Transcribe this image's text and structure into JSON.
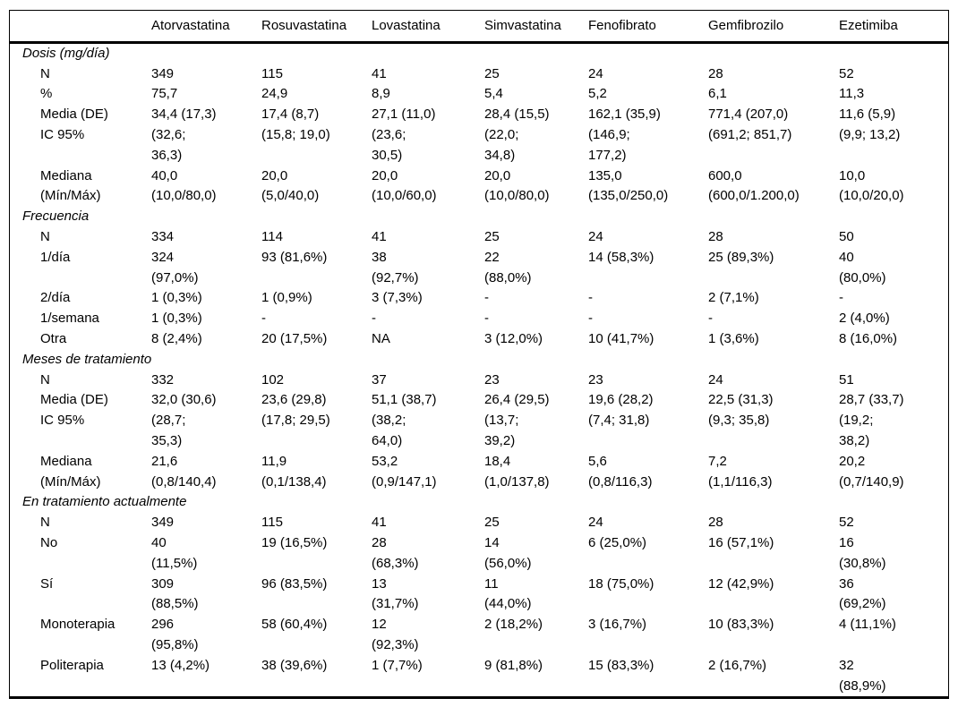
{
  "table": {
    "columns": [
      "",
      "Atorvastatina",
      "Rosuvastatina",
      "Lovastatina",
      "Simvastatina",
      "Fenofibrato",
      "Gemfibrozilo",
      "Ezetimiba"
    ],
    "sections": [
      {
        "title": "Dosis (mg/día)",
        "rows": [
          {
            "label": "N",
            "values": [
              "349",
              "115",
              "41",
              "25",
              "24",
              "28",
              "52"
            ]
          },
          {
            "label": "%",
            "values": [
              "75,7",
              "24,9",
              "8,9",
              "5,4",
              "5,2",
              "6,1",
              "11,3"
            ]
          },
          {
            "label": "Media (DE)",
            "values": [
              "34,4 (17,3)",
              "17,4 (8,7)",
              "27,1 (11,0)",
              "28,4 (15,5)",
              "162,1 (35,9)",
              "771,4 (207,0)",
              "11,6 (5,9)"
            ]
          },
          {
            "label": "IC 95%",
            "values": [
              "(32,6;\n36,3)",
              "(15,8; 19,0)",
              "(23,6;\n30,5)",
              "(22,0;\n34,8)",
              "(146,9;\n177,2)",
              "(691,2; 851,7)",
              "(9,9; 13,2)"
            ]
          },
          {
            "label": "Mediana",
            "values": [
              "40,0",
              "20,0",
              "20,0",
              "20,0",
              "135,0",
              "600,0",
              "10,0"
            ]
          },
          {
            "label": "(Mín/Máx)",
            "values": [
              "(10,0/80,0)",
              "(5,0/40,0)",
              "(10,0/60,0)",
              "(10,0/80,0)",
              "(135,0/250,0)",
              "(600,0/1.200,0)",
              "(10,0/20,0)"
            ]
          }
        ]
      },
      {
        "title": "Frecuencia",
        "rows": [
          {
            "label": "N",
            "values": [
              "334",
              "114",
              "41",
              "25",
              "24",
              "28",
              "50"
            ]
          },
          {
            "label": "1/día",
            "values": [
              "324\n(97,0%)",
              "93 (81,6%)",
              "38\n(92,7%)",
              "22\n(88,0%)",
              "14 (58,3%)",
              "25 (89,3%)",
              "40\n(80,0%)"
            ]
          },
          {
            "label": "2/día",
            "values": [
              "1 (0,3%)",
              "1 (0,9%)",
              "3 (7,3%)",
              "-",
              "-",
              "2 (7,1%)",
              "-"
            ]
          },
          {
            "label": "1/semana",
            "values": [
              "1 (0,3%)",
              "-",
              "-",
              "-",
              "-",
              "-",
              "2 (4,0%)"
            ]
          },
          {
            "label": "Otra",
            "values": [
              "8 (2,4%)",
              "20 (17,5%)",
              "NA",
              "3 (12,0%)",
              "10 (41,7%)",
              "1 (3,6%)",
              "8 (16,0%)"
            ]
          }
        ]
      },
      {
        "title": "Meses de tratamiento",
        "rows": [
          {
            "label": "N",
            "values": [
              "332",
              "102",
              "37",
              "23",
              "23",
              "24",
              "51"
            ]
          },
          {
            "label": "Media (DE)",
            "values": [
              "32,0 (30,6)",
              "23,6 (29,8)",
              "51,1 (38,7)",
              "26,4 (29,5)",
              "19,6 (28,2)",
              "22,5 (31,3)",
              "28,7 (33,7)"
            ]
          },
          {
            "label": "IC 95%",
            "values": [
              "(28,7;\n35,3)",
              "(17,8; 29,5)",
              "(38,2;\n64,0)",
              "(13,7;\n39,2)",
              "(7,4; 31,8)",
              "(9,3; 35,8)",
              "(19,2;\n38,2)"
            ]
          },
          {
            "label": "Mediana",
            "values": [
              "21,6",
              "11,9",
              "53,2",
              "18,4",
              "5,6",
              "7,2",
              "20,2"
            ]
          },
          {
            "label": "(Mín/Máx)",
            "values": [
              "(0,8/140,4)",
              "(0,1/138,4)",
              "(0,9/147,1)",
              "(1,0/137,8)",
              "(0,8/116,3)",
              "(1,1/116,3)",
              "(0,7/140,9)"
            ]
          }
        ]
      },
      {
        "title": "En tratamiento actualmente",
        "rows": [
          {
            "label": "N",
            "values": [
              "349",
              "115",
              "41",
              "25",
              "24",
              "28",
              "52"
            ]
          },
          {
            "label": "No",
            "values": [
              "40\n(11,5%)",
              "19 (16,5%)",
              "28\n(68,3%)",
              "14\n(56,0%)",
              "6 (25,0%)",
              "16 (57,1%)",
              "16\n(30,8%)"
            ]
          },
          {
            "label": "Sí",
            "values": [
              "309\n(88,5%)",
              "96 (83,5%)",
              "13\n(31,7%)",
              "11\n(44,0%)",
              "18 (75,0%)",
              "12 (42,9%)",
              "36\n(69,2%)"
            ]
          },
          {
            "label": "Monoterapia",
            "values": [
              "296\n(95,8%)",
              "58 (60,4%)",
              "12\n(92,3%)",
              "2 (18,2%)",
              "3 (16,7%)",
              "10 (83,3%)",
              "4 (11,1%)"
            ]
          },
          {
            "label": "Politerapia",
            "values": [
              "13 (4,2%)",
              "38 (39,6%)",
              "1 (7,7%)",
              "9 (81,8%)",
              "15 (83,3%)",
              "2 (16,7%)",
              "32\n(88,9%)"
            ]
          }
        ]
      }
    ]
  }
}
